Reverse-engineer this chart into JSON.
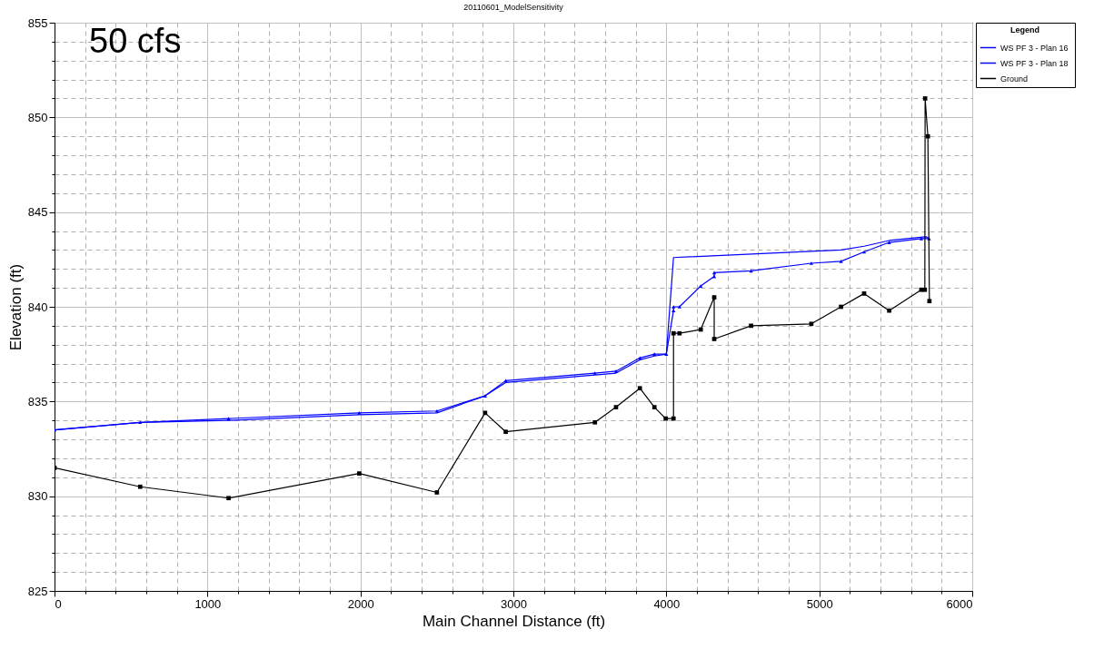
{
  "chart_data": {
    "type": "line",
    "title": "20110601_ModelSensitivity",
    "xlabel": "Main Channel Distance (ft)",
    "ylabel": "Elevation (ft)",
    "legend_title": "Legend",
    "annotations": [
      "50 cfs"
    ],
    "xlim": [
      0,
      6000
    ],
    "ylim": [
      825,
      855
    ],
    "xticks": [
      0,
      {
        "value": 200,
        "label": null
      },
      {
        "value": 400,
        "label": null
      },
      {
        "value": 600,
        "label": null
      },
      {
        "value": 800,
        "label": null
      },
      1000,
      {
        "value": 1200,
        "label": null
      },
      {
        "value": 1400,
        "label": null
      },
      {
        "value": 1600,
        "label": null
      },
      {
        "value": 1800,
        "label": null
      },
      2000,
      {
        "value": 2200,
        "label": null
      },
      {
        "value": 2400,
        "label": null
      },
      {
        "value": 2600,
        "label": null
      },
      {
        "value": 2800,
        "label": null
      },
      3000,
      {
        "value": 3200,
        "label": null
      },
      {
        "value": 3400,
        "label": null
      },
      {
        "value": 3600,
        "label": null
      },
      {
        "value": 3800,
        "label": null
      },
      4000,
      {
        "value": 4200,
        "label": null
      },
      {
        "value": 4400,
        "label": null
      },
      {
        "value": 4600,
        "label": null
      },
      {
        "value": 4800,
        "label": null
      },
      5000,
      {
        "value": 5200,
        "label": null
      },
      {
        "value": 5400,
        "label": null
      },
      {
        "value": 5600,
        "label": null
      },
      {
        "value": 5800,
        "label": null
      },
      6000
    ],
    "yticks": [
      825,
      {
        "value": 826,
        "label": null
      },
      {
        "value": 827,
        "label": null
      },
      {
        "value": 828,
        "label": null
      },
      {
        "value": 829,
        "label": null
      },
      830,
      {
        "value": 831,
        "label": null
      },
      {
        "value": 832,
        "label": null
      },
      {
        "value": 833,
        "label": null
      },
      {
        "value": 834,
        "label": null
      },
      835,
      {
        "value": 836,
        "label": null
      },
      {
        "value": 837,
        "label": null
      },
      {
        "value": 838,
        "label": null
      },
      {
        "value": 839,
        "label": null
      },
      840,
      {
        "value": 841,
        "label": null
      },
      {
        "value": 842,
        "label": null
      },
      {
        "value": 843,
        "label": null
      },
      {
        "value": 844,
        "label": null
      },
      845,
      {
        "value": 846,
        "label": null
      },
      {
        "value": 847,
        "label": null
      },
      {
        "value": 848,
        "label": null
      },
      {
        "value": 849,
        "label": null
      },
      850,
      {
        "value": 851,
        "label": null
      },
      {
        "value": 852,
        "label": null
      },
      {
        "value": 853,
        "label": null
      },
      {
        "value": 854,
        "label": null
      },
      855
    ],
    "grid": true,
    "legend": "top right",
    "series": [
      {
        "name": "WS  PF 3 - Plan 16",
        "color": "#0000ff",
        "marker": "none",
        "x": [
          0,
          560,
          1138,
          1992,
          2500,
          2815,
          2950,
          3533,
          3671,
          3827,
          3922,
          4000,
          4047,
          5142,
          5293,
          5457,
          5698,
          5718
        ],
        "values": [
          833.5,
          833.9,
          834.0,
          834.3,
          834.4,
          835.3,
          836.0,
          836.4,
          836.5,
          837.2,
          837.4,
          837.5,
          842.6,
          843.0,
          843.2,
          843.5,
          843.7,
          843.6
        ]
      },
      {
        "name": "WS  PF 3 - Plan 18",
        "color": "#0000ff",
        "marker": "triangle",
        "x": [
          0,
          560,
          1138,
          1992,
          2500,
          2815,
          2950,
          3533,
          3671,
          3827,
          3922,
          4000,
          4047,
          4047,
          4086,
          4225,
          4313,
          4313,
          4554,
          4948,
          5142,
          5293,
          5457,
          5667,
          5718
        ],
        "values": [
          833.5,
          833.9,
          834.1,
          834.4,
          834.5,
          835.3,
          836.1,
          836.5,
          836.6,
          837.3,
          837.5,
          837.5,
          839.8,
          840.0,
          840.0,
          841.1,
          841.6,
          841.8,
          841.9,
          842.3,
          842.4,
          842.9,
          843.4,
          843.6,
          843.6
        ]
      },
      {
        "name": "Ground",
        "color": "#000000",
        "marker": "square",
        "x": [
          0,
          560,
          1138,
          1992,
          2500,
          2815,
          2950,
          3533,
          3671,
          3827,
          3922,
          3996,
          4047,
          4047,
          4086,
          4225,
          4313,
          4313,
          4554,
          4948,
          5142,
          5293,
          5457,
          5667,
          5690,
          5692,
          5710,
          5720
        ],
        "values": [
          831.5,
          830.5,
          829.9,
          831.2,
          830.2,
          834.4,
          833.4,
          833.9,
          834.7,
          835.7,
          834.7,
          834.1,
          834.1,
          838.6,
          838.6,
          838.8,
          840.5,
          838.3,
          839.0,
          839.1,
          840.0,
          840.7,
          839.8,
          840.9,
          840.9,
          851.0,
          849.0,
          840.3
        ]
      }
    ]
  }
}
